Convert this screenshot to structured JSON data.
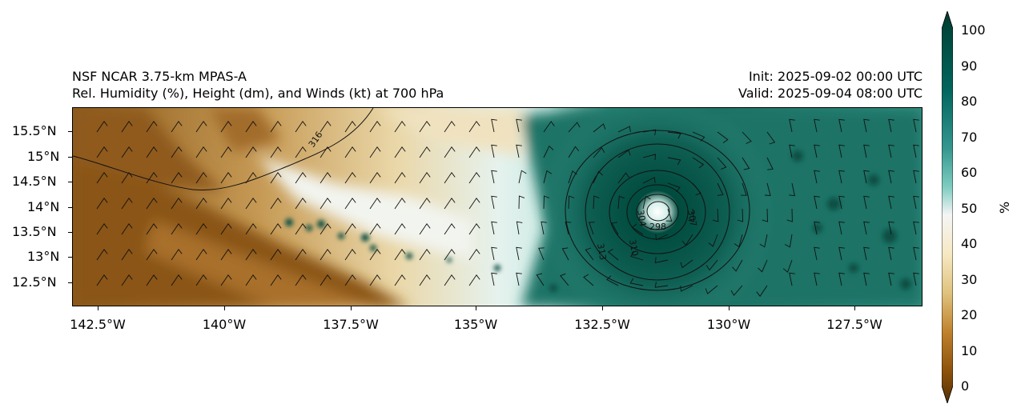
{
  "title": {
    "left_line1": "NSF NCAR 3.75-km MPAS-A",
    "left_line2": "Rel. Humidity (%), Height (dm), and Winds (kt) at 700 hPa",
    "right_line1": "Init: 2025-09-02 00:00 UTC",
    "right_line2": "Valid: 2025-09-04 08:00 UTC"
  },
  "map": {
    "lat_labels": [
      "15.5°N",
      "15°N",
      "14.5°N",
      "14°N",
      "13.5°N",
      "13°N",
      "12.5°N"
    ],
    "lon_labels": [
      "142.5°W",
      "140°W",
      "137.5°W",
      "135°W",
      "132.5°W",
      "130°W",
      "127.5°W"
    ],
    "contour_labels": [
      "316",
      "313",
      "310",
      "307",
      "304",
      "298"
    ]
  },
  "colorbar": {
    "ticks": [
      "100",
      "90",
      "80",
      "70",
      "60",
      "50",
      "40",
      "30",
      "20",
      "10",
      "0"
    ],
    "unit": "%",
    "colors": {
      "low": "#543005",
      "mid_low": "#dfc27d",
      "mid": "#f5f5f5",
      "mid_high": "#80cdc1",
      "high": "#003c30"
    }
  }
}
